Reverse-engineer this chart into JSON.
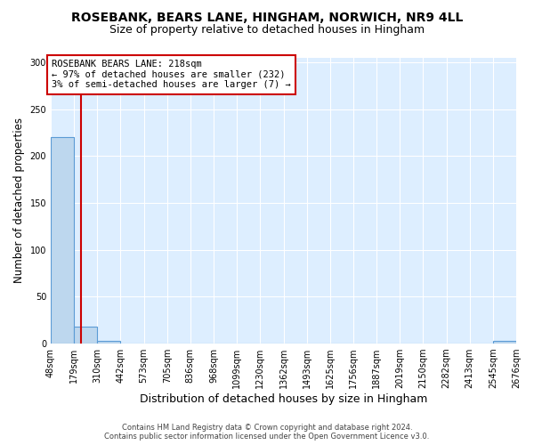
{
  "title_line1": "ROSEBANK, BEARS LANE, HINGHAM, NORWICH, NR9 4LL",
  "title_line2": "Size of property relative to detached houses in Hingham",
  "xlabel": "Distribution of detached houses by size in Hingham",
  "ylabel": "Number of detached properties",
  "bin_edges": [
    48,
    179,
    310,
    442,
    573,
    705,
    836,
    968,
    1099,
    1230,
    1362,
    1493,
    1625,
    1756,
    1887,
    2019,
    2150,
    2282,
    2413,
    2545,
    2676
  ],
  "bar_heights": [
    220,
    18,
    3,
    0,
    0,
    0,
    0,
    0,
    0,
    0,
    0,
    0,
    0,
    0,
    0,
    0,
    0,
    0,
    0,
    3
  ],
  "bar_color": "#bdd7ee",
  "bar_edge_color": "#5b9bd5",
  "property_size": 218,
  "vline_color": "#cc0000",
  "annotation_text": "ROSEBANK BEARS LANE: 218sqm\n← 97% of detached houses are smaller (232)\n3% of semi-detached houses are larger (7) →",
  "annotation_box_edgecolor": "#cc0000",
  "annotation_box_facecolor": "#ffffff",
  "ylim": [
    0,
    305
  ],
  "yticks": [
    0,
    50,
    100,
    150,
    200,
    250,
    300
  ],
  "background_color": "#ddeeff",
  "footer_line1": "Contains HM Land Registry data © Crown copyright and database right 2024.",
  "footer_line2": "Contains public sector information licensed under the Open Government Licence v3.0.",
  "title_fontsize": 10,
  "subtitle_fontsize": 9,
  "tick_labelsize": 7,
  "ylabel_fontsize": 8.5,
  "xlabel_fontsize": 9,
  "annotation_fontsize": 7.5
}
